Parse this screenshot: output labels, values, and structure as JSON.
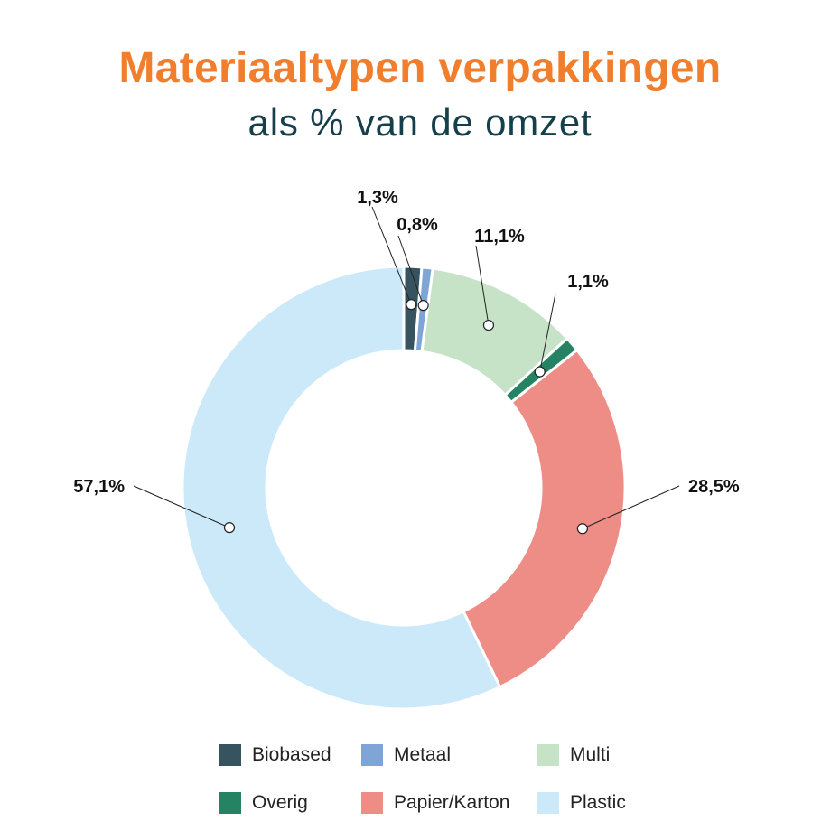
{
  "chart_data": {
    "type": "pie",
    "donut": true,
    "title": "Materiaaltypen verpakkingen",
    "subtitle": "als % van de omzet",
    "series": [
      {
        "name": "Biobased",
        "value": 1.3,
        "label": "1,3%",
        "color": "#36535f"
      },
      {
        "name": "Metaal",
        "value": 0.8,
        "label": "0,8%",
        "color": "#7fa5d7"
      },
      {
        "name": "Multi",
        "value": 11.1,
        "label": "11,1%",
        "color": "#c6e3c8"
      },
      {
        "name": "Overig",
        "value": 1.1,
        "label": "1,1%",
        "color": "#258364"
      },
      {
        "name": "Papier/Karton",
        "value": 28.5,
        "label": "28,5%",
        "color": "#ee8d86"
      },
      {
        "name": "Plastic",
        "value": 57.1,
        "label": "57,1%",
        "color": "#cce9f9"
      }
    ],
    "legend_position": "bottom"
  }
}
